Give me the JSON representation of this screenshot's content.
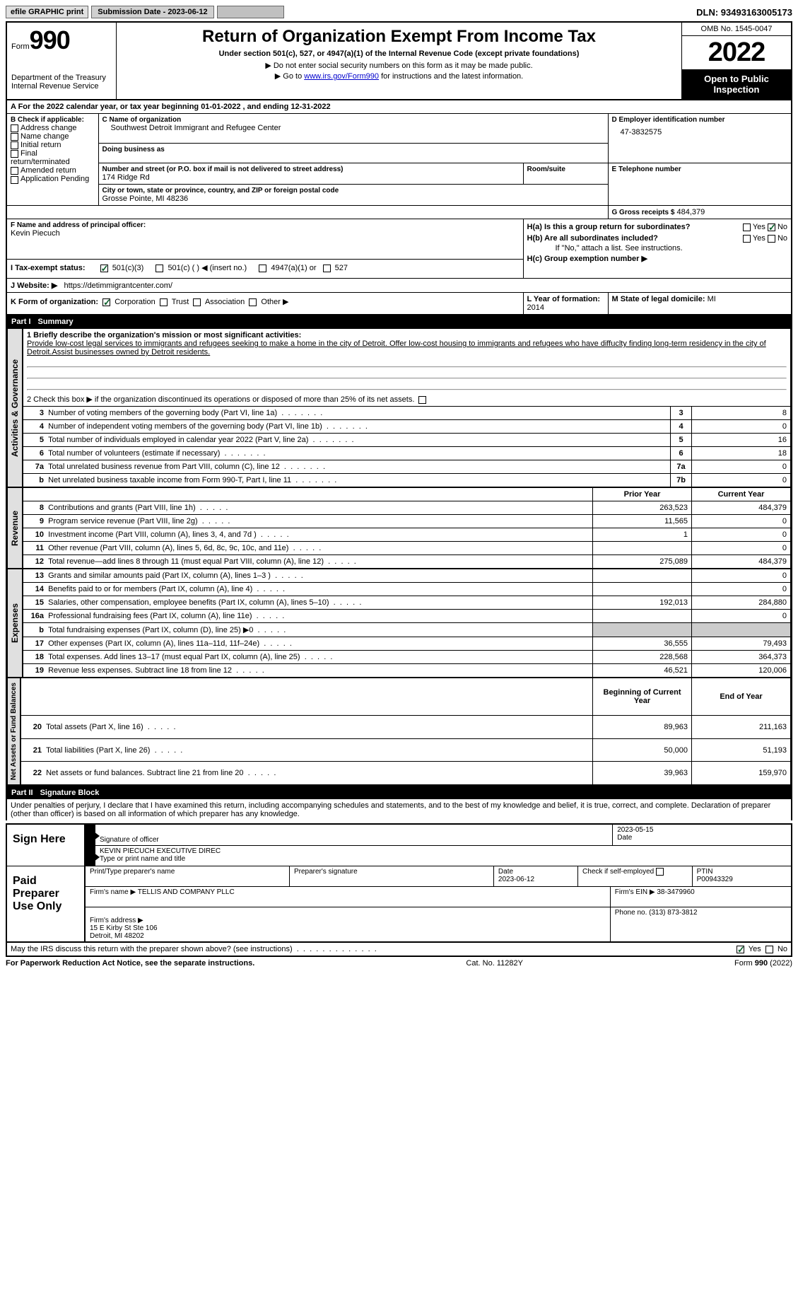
{
  "topbar": {
    "efile": "efile GRAPHIC print",
    "submission": "Submission Date - 2023-06-12",
    "dln": "DLN: 93493163005173"
  },
  "header": {
    "form_label": "Form",
    "form_num": "990",
    "dept": "Department of the Treasury\nInternal Revenue Service",
    "title": "Return of Organization Exempt From Income Tax",
    "subtitle": "Under section 501(c), 527, or 4947(a)(1) of the Internal Revenue Code (except private foundations)",
    "note1": "▶ Do not enter social security numbers on this form as it may be made public.",
    "note2_pre": "▶ Go to ",
    "note2_link": "www.irs.gov/Form990",
    "note2_post": " for instructions and the latest information.",
    "omb": "OMB No. 1545-0047",
    "year": "2022",
    "inspection": "Open to Public Inspection"
  },
  "period": {
    "line": "A For the 2022 calendar year, or tax year beginning 01-01-2022    , and ending 12-31-2022"
  },
  "blockB": {
    "label": "B Check if applicable:",
    "opts": [
      "Address change",
      "Name change",
      "Initial return",
      "Final return/terminated",
      "Amended return",
      "Application Pending"
    ]
  },
  "blockC": {
    "name_label": "C Name of organization",
    "name": "Southwest Detroit Immigrant and Refugee Center",
    "dba_label": "Doing business as",
    "street_label": "Number and street (or P.O. box if mail is not delivered to street address)",
    "street": "174 Ridge Rd",
    "room_label": "Room/suite",
    "city_label": "City or town, state or province, country, and ZIP or foreign postal code",
    "city": "Grosse Pointe, MI  48236"
  },
  "blockD": {
    "label": "D Employer identification number",
    "value": "47-3832575"
  },
  "blockE": {
    "label": "E Telephone number",
    "value": ""
  },
  "blockG": {
    "label": "G Gross receipts $",
    "value": "484,379"
  },
  "blockF": {
    "label": "F Name and address of principal officer:",
    "name": "Kevin Piecuch"
  },
  "blockH": {
    "a": "H(a)  Is this a group return for subordinates?",
    "b": "H(b)  Are all subordinates included?",
    "b_note": "If \"No,\" attach a list. See instructions.",
    "c": "H(c)  Group exemption number ▶"
  },
  "blockI": {
    "label": "I    Tax-exempt status:",
    "opts": [
      "501(c)(3)",
      "501(c) (  ) ◀ (insert no.)",
      "4947(a)(1) or",
      "527"
    ]
  },
  "blockJ": {
    "label": "J   Website: ▶",
    "value": "https://detimmigrantcenter.com/"
  },
  "blockK": {
    "label": "K Form of organization:",
    "opts": [
      "Corporation",
      "Trust",
      "Association",
      "Other ▶"
    ]
  },
  "blockL": {
    "label": "L Year of formation:",
    "value": "2014"
  },
  "blockM": {
    "label": "M State of legal domicile:",
    "value": "MI"
  },
  "part1": {
    "title": "Part I",
    "name": "Summary",
    "l1_label": "1   Briefly describe the organization's mission or most significant activities:",
    "l1_text": "Provide low-cost legal services to immigrants and refugees seeking to make a home in the city of Detroit. Offer low-cost housing to immigrants and refugees who have diffuclty finding long-term residency in the city of Detroit.Assist businesses owned by Detroit residents.",
    "l2": "2   Check this box ▶  if the organization discontinued its operations or disposed of more than 25% of its net assets.",
    "rows": [
      {
        "n": "3",
        "d": "Number of voting members of the governing body (Part VI, line 1a)",
        "ref": "3",
        "v": "8"
      },
      {
        "n": "4",
        "d": "Number of independent voting members of the governing body (Part VI, line 1b)",
        "ref": "4",
        "v": "0"
      },
      {
        "n": "5",
        "d": "Total number of individuals employed in calendar year 2022 (Part V, line 2a)",
        "ref": "5",
        "v": "16"
      },
      {
        "n": "6",
        "d": "Total number of volunteers (estimate if necessary)",
        "ref": "6",
        "v": "18"
      },
      {
        "n": "7a",
        "d": "Total unrelated business revenue from Part VIII, column (C), line 12",
        "ref": "7a",
        "v": "0"
      },
      {
        "n": "b",
        "d": "Net unrelated business taxable income from Form 990-T, Part I, line 11",
        "ref": "7b",
        "v": "0"
      }
    ],
    "col_headers": {
      "prior": "Prior Year",
      "current": "Current Year"
    },
    "revenue_rows": [
      {
        "n": "8",
        "d": "Contributions and grants (Part VIII, line 1h)",
        "p": "263,523",
        "c": "484,379"
      },
      {
        "n": "9",
        "d": "Program service revenue (Part VIII, line 2g)",
        "p": "11,565",
        "c": "0"
      },
      {
        "n": "10",
        "d": "Investment income (Part VIII, column (A), lines 3, 4, and 7d )",
        "p": "1",
        "c": "0"
      },
      {
        "n": "11",
        "d": "Other revenue (Part VIII, column (A), lines 5, 6d, 8c, 9c, 10c, and 11e)",
        "p": "",
        "c": "0"
      },
      {
        "n": "12",
        "d": "Total revenue—add lines 8 through 11 (must equal Part VIII, column (A), line 12)",
        "p": "275,089",
        "c": "484,379"
      }
    ],
    "expense_rows": [
      {
        "n": "13",
        "d": "Grants and similar amounts paid (Part IX, column (A), lines 1–3 )",
        "p": "",
        "c": "0"
      },
      {
        "n": "14",
        "d": "Benefits paid to or for members (Part IX, column (A), line 4)",
        "p": "",
        "c": "0"
      },
      {
        "n": "15",
        "d": "Salaries, other compensation, employee benefits (Part IX, column (A), lines 5–10)",
        "p": "192,013",
        "c": "284,880"
      },
      {
        "n": "16a",
        "d": "Professional fundraising fees (Part IX, column (A), line 11e)",
        "p": "",
        "c": "0"
      },
      {
        "n": "b",
        "d": "Total fundraising expenses (Part IX, column (D), line 25) ▶0",
        "p": "GRAY",
        "c": "GRAY"
      },
      {
        "n": "17",
        "d": "Other expenses (Part IX, column (A), lines 11a–11d, 11f–24e)",
        "p": "36,555",
        "c": "79,493"
      },
      {
        "n": "18",
        "d": "Total expenses. Add lines 13–17 (must equal Part IX, column (A), line 25)",
        "p": "228,568",
        "c": "364,373"
      },
      {
        "n": "19",
        "d": "Revenue less expenses. Subtract line 18 from line 12",
        "p": "46,521",
        "c": "120,006"
      }
    ],
    "net_headers": {
      "begin": "Beginning of Current Year",
      "end": "End of Year"
    },
    "net_rows": [
      {
        "n": "20",
        "d": "Total assets (Part X, line 16)",
        "p": "89,963",
        "c": "211,163"
      },
      {
        "n": "21",
        "d": "Total liabilities (Part X, line 26)",
        "p": "50,000",
        "c": "51,193"
      },
      {
        "n": "22",
        "d": "Net assets or fund balances. Subtract line 21 from line 20",
        "p": "39,963",
        "c": "159,970"
      }
    ]
  },
  "vlabels": {
    "gov": "Activities & Governance",
    "rev": "Revenue",
    "exp": "Expenses",
    "net": "Net Assets or Fund Balances"
  },
  "part2": {
    "title": "Part II",
    "name": "Signature Block",
    "decl": "Under penalties of perjury, I declare that I have examined this return, including accompanying schedules and statements, and to the best of my knowledge and belief, it is true, correct, and complete. Declaration of preparer (other than officer) is based on all information of which preparer has any knowledge."
  },
  "sign": {
    "label": "Sign Here",
    "sig_label": "Signature of officer",
    "date": "2023-05-15",
    "date_label": "Date",
    "name": "KEVIN PIECUCH  EXECUTIVE DIREC",
    "name_label": "Type or print name and title"
  },
  "preparer": {
    "label": "Paid Preparer Use Only",
    "print_label": "Print/Type preparer's name",
    "sig_label": "Preparer's signature",
    "date_label": "Date",
    "date": "2023-06-12",
    "check_label": "Check          if self-employed",
    "ptin_label": "PTIN",
    "ptin": "P00943329",
    "firm_name_label": "Firm's name    ▶",
    "firm_name": "TELLIS AND COMPANY PLLC",
    "firm_ein_label": "Firm's EIN ▶",
    "firm_ein": "38-3479960",
    "firm_addr_label": "Firm's address ▶",
    "firm_addr": "15 E Kirby St Ste 106\nDetroit, MI  48202",
    "phone_label": "Phone no.",
    "phone": "(313) 873-3812"
  },
  "discuss": {
    "text": "May the IRS discuss this return with the preparer shown above? (see instructions)",
    "yes": "Yes",
    "no": "No"
  },
  "footer": {
    "left": "For Paperwork Reduction Act Notice, see the separate instructions.",
    "mid": "Cat. No. 11282Y",
    "right": "Form 990 (2022)"
  }
}
